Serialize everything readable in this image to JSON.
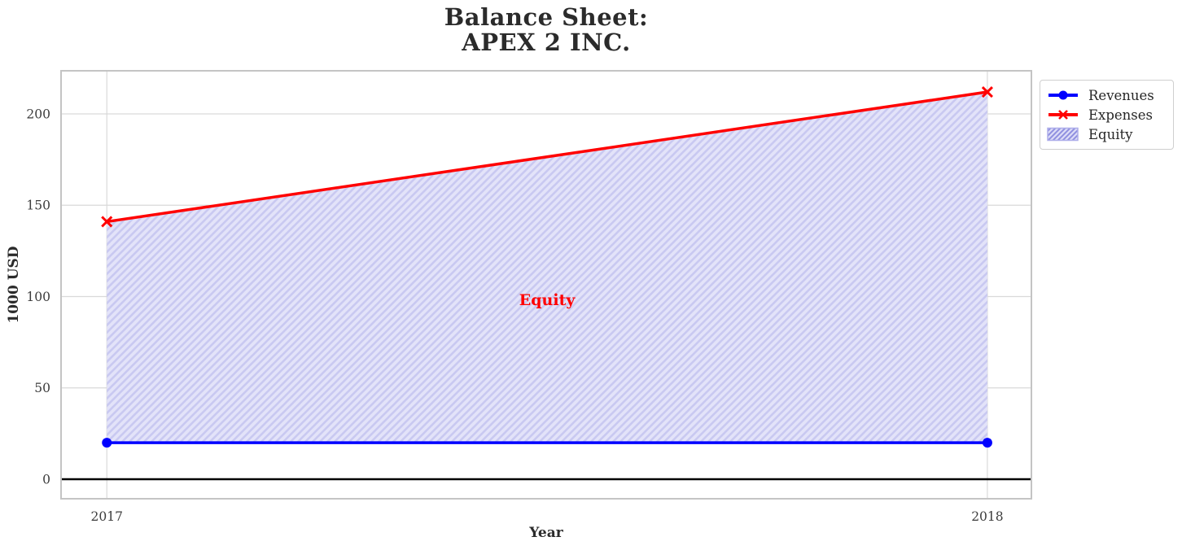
{
  "title": {
    "line1": "Balance Sheet:",
    "line2": "APEX 2 INC."
  },
  "axis_labels": {
    "x": "Year",
    "y": "1000 USD"
  },
  "legend": {
    "items": [
      {
        "label": "Revenues",
        "swatch": "blue-line-circle"
      },
      {
        "label": "Expenses",
        "swatch": "red-line-x"
      },
      {
        "label": "Equity",
        "swatch": "hatched-patch"
      }
    ]
  },
  "annotation": {
    "text": "Equity"
  },
  "colors": {
    "revenues": "#0000ff",
    "expenses": "#ff0000",
    "equity_fill": "#e3e3f9",
    "equity_hatch": "#c9c9f1",
    "annotation": "#ff0000",
    "grid": "#d9d9d9",
    "spine": "#c4c4c4",
    "zero_line": "#000000",
    "title_text": "#2b2b2b",
    "tick_text": "#3c3c3c"
  },
  "chart_data": {
    "type": "line",
    "title": "Balance Sheet:\nAPEX 2 INC.",
    "xlabel": "Year",
    "ylabel": "1000 USD",
    "x": [
      2017,
      2018
    ],
    "series": [
      {
        "name": "Revenues",
        "values": [
          20,
          20
        ],
        "color": "#0000ff",
        "marker": "circle",
        "linewidth": 3.5
      },
      {
        "name": "Expenses",
        "values": [
          141,
          212
        ],
        "color": "#ff0000",
        "marker": "x",
        "linewidth": 3.5
      }
    ],
    "area": {
      "name": "Equity",
      "between": [
        "Revenues",
        "Expenses"
      ],
      "values": [
        121,
        192
      ],
      "face_color": "#e3e3f9",
      "hatch": "/",
      "hatch_color": "#c9c9f1"
    },
    "annotation": {
      "text": "Equity",
      "x": 2017.5,
      "y": 98,
      "color": "#ff0000",
      "bold": true
    },
    "xticks": [
      2017,
      2018
    ],
    "yticks": [
      0,
      50,
      100,
      150,
      200
    ],
    "xlim": [
      2016.948,
      2018.05
    ],
    "ylim": [
      -10.7,
      223.6
    ],
    "grid": true,
    "zero_line_y": 0,
    "legend_position": "outside-top-right"
  }
}
